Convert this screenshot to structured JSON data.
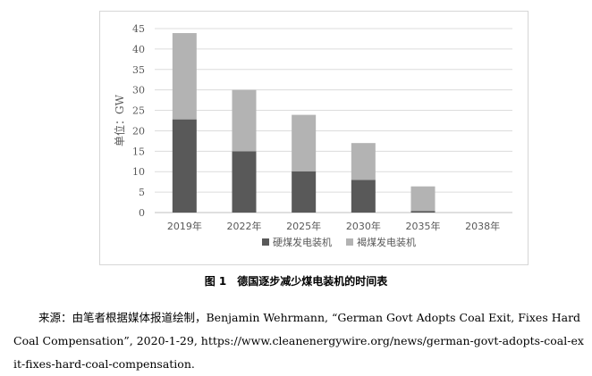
{
  "chart_data": {
    "type": "bar",
    "stacked": true,
    "categories": [
      "2019年",
      "2022年",
      "2025年",
      "2030年",
      "2035年",
      "2038年"
    ],
    "series": [
      {
        "name": "硬煤发电装机",
        "values": [
          22.8,
          15.0,
          10.1,
          8.0,
          0.4,
          0
        ],
        "color": "#595959"
      },
      {
        "name": "褐煤发电装机",
        "values": [
          21.1,
          15.0,
          13.8,
          9.0,
          6.0,
          0
        ],
        "color": "#b3b3b3"
      }
    ],
    "ylabel": "单位：GW",
    "yticks": [
      0,
      5,
      10,
      15,
      20,
      25,
      30,
      35,
      40,
      45
    ],
    "ylim": [
      0,
      45
    ],
    "grid": true,
    "legend_position": "bottom"
  },
  "figure_caption": "图 1　德国逐步减少煤电装机的时间表",
  "source_text": "来源：由笔者根据媒体报道绘制，Benjamin Wehrmann, “German Govt Adopts Coal Exit, Fixes Hard Coal Compensation”, 2020-1-29, https://www.cleanenergywire.org/news/german-govt-adopts-coal-exit-fixes-hard-coal-compensation."
}
